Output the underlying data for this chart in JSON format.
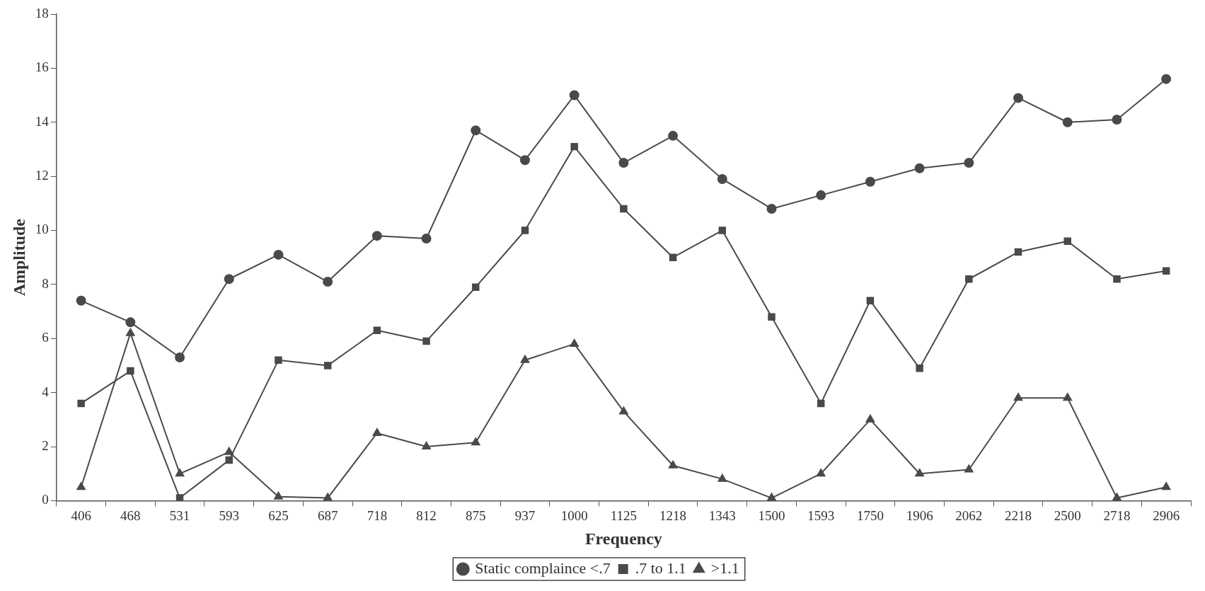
{
  "chart_data": {
    "type": "line",
    "xlabel": "Frequency",
    "ylabel": "Amplitude",
    "categories": [
      "406",
      "468",
      "531",
      "593",
      "625",
      "687",
      "718",
      "812",
      "875",
      "937",
      "1000",
      "1125",
      "1218",
      "1343",
      "1500",
      "1593",
      "1750",
      "1906",
      "2062",
      "2218",
      "2500",
      "2718",
      "2906"
    ],
    "ylim": [
      0,
      18
    ],
    "yticks": [
      0,
      2,
      4,
      6,
      8,
      10,
      12,
      14,
      16,
      18
    ],
    "grid": false,
    "legend": "bottom",
    "line_style": "solid",
    "series": [
      {
        "name": "Static complaince <.7",
        "color": "#4a4a4a",
        "marker": "circle",
        "values": [
          7.4,
          6.6,
          5.3,
          8.2,
          9.1,
          8.1,
          9.8,
          9.7,
          13.7,
          12.6,
          15.0,
          12.5,
          13.5,
          11.9,
          10.8,
          11.3,
          11.8,
          12.3,
          12.5,
          14.9,
          14.0,
          14.1,
          15.6
        ]
      },
      {
        "name": ".7 to 1.1",
        "color": "#4a4a4a",
        "marker": "square",
        "values": [
          3.6,
          4.8,
          0.1,
          1.5,
          5.2,
          5.0,
          6.3,
          5.9,
          7.9,
          10.0,
          13.1,
          10.8,
          9.0,
          10.0,
          6.8,
          3.6,
          7.4,
          4.9,
          8.2,
          9.2,
          9.6,
          8.2,
          8.5
        ]
      },
      {
        "name": ">1.1",
        "color": "#4a4a4a",
        "marker": "triangle",
        "values": [
          0.5,
          6.2,
          1.0,
          1.8,
          0.15,
          0.1,
          2.5,
          2.0,
          2.15,
          5.2,
          5.8,
          3.3,
          1.3,
          0.8,
          0.1,
          1.0,
          3.0,
          1.0,
          1.15,
          3.8,
          3.8,
          0.1,
          0.5
        ]
      }
    ]
  }
}
